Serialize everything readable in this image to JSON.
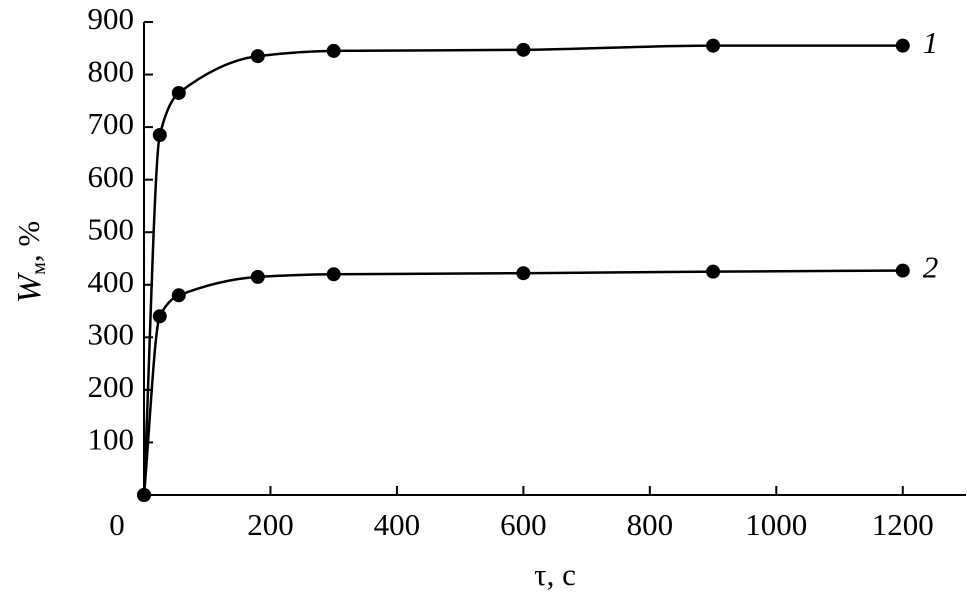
{
  "chart_data": {
    "type": "line",
    "x_label": "τ, c",
    "y_label": "W",
    "y_label_subscript": "м",
    "y_label_suffix": ", %",
    "x": [
      0,
      25,
      55,
      180,
      300,
      600,
      900,
      1200
    ],
    "series": [
      {
        "name": "1",
        "color": "#000000",
        "values": [
          0,
          685,
          765,
          835,
          845,
          847,
          855,
          855
        ]
      },
      {
        "name": "2",
        "color": "#000000",
        "values": [
          0,
          340,
          380,
          415,
          420,
          422,
          425,
          427
        ]
      }
    ],
    "xlim": [
      0,
      1300
    ],
    "ylim": [
      0,
      900
    ],
    "xticks": [
      0,
      200,
      400,
      600,
      800,
      1000,
      1200
    ],
    "yticks": [
      100,
      200,
      300,
      400,
      500,
      600,
      700,
      800,
      900
    ],
    "grid": false
  }
}
